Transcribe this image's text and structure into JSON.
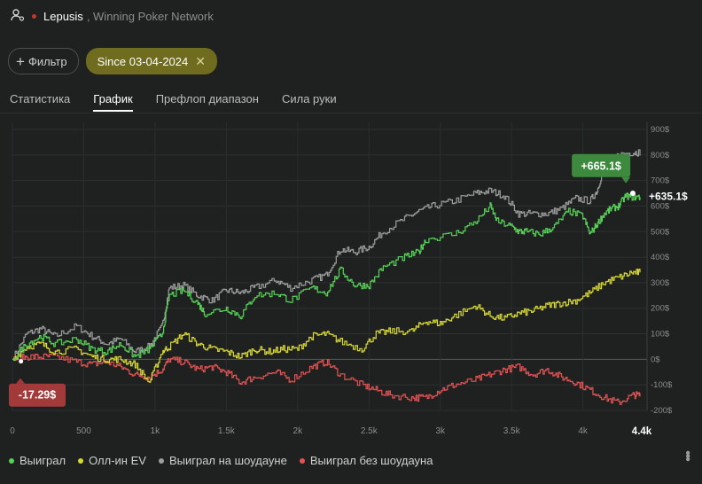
{
  "header": {
    "player": "Lepusis",
    "network": ", Winning Poker Network",
    "user_icon": "user-settings-icon"
  },
  "filters": {
    "add_label": "Фильтр",
    "date_label": "Since 03-04-2024"
  },
  "tabs": [
    {
      "label": "Статистика",
      "active": false
    },
    {
      "label": "График",
      "active": true
    },
    {
      "label": "Префлоп диапазон",
      "active": false
    },
    {
      "label": "Сила руки",
      "active": false
    }
  ],
  "chart_data": {
    "type": "line",
    "xlabel": "",
    "ylabel": "",
    "xlim": [
      0,
      4400
    ],
    "ylim": [
      -200,
      900
    ],
    "x_ticks": [
      "0",
      "500",
      "1k",
      "1.5k",
      "2k",
      "2.5k",
      "3k",
      "3.5k",
      "4k"
    ],
    "x_last_label": "4.4k",
    "y_ticks": [
      "900$",
      "800$",
      "700$",
      "600$",
      "500$",
      "400$",
      "300$",
      "200$",
      "100$",
      "0$",
      "-100$",
      "-200$"
    ],
    "y_tick_values": [
      900,
      800,
      700,
      600,
      500,
      400,
      300,
      200,
      100,
      0,
      -100,
      -200
    ],
    "grid": true,
    "legend_position": "bottom-left",
    "annotations": [
      {
        "text": "+665.1$",
        "x": 4320,
        "y": 665,
        "style": "green-box"
      },
      {
        "text": "+635.1$",
        "x": 4400,
        "y": 635,
        "style": "label"
      },
      {
        "text": "-17.29$",
        "x": 60,
        "y": -17,
        "style": "red-box"
      }
    ],
    "series": [
      {
        "name": "Выиграл",
        "color": "#58d158",
        "points": [
          [
            0,
            0
          ],
          [
            100,
            60
          ],
          [
            200,
            90
          ],
          [
            300,
            60
          ],
          [
            450,
            80
          ],
          [
            560,
            40
          ],
          [
            660,
            30
          ],
          [
            760,
            60
          ],
          [
            860,
            10
          ],
          [
            960,
            40
          ],
          [
            1050,
            100
          ],
          [
            1100,
            250
          ],
          [
            1200,
            270
          ],
          [
            1300,
            220
          ],
          [
            1350,
            180
          ],
          [
            1500,
            200
          ],
          [
            1600,
            170
          ],
          [
            1700,
            250
          ],
          [
            1850,
            260
          ],
          [
            1950,
            230
          ],
          [
            2100,
            280
          ],
          [
            2200,
            260
          ],
          [
            2300,
            350
          ],
          [
            2400,
            290
          ],
          [
            2500,
            290
          ],
          [
            2600,
            360
          ],
          [
            2750,
            400
          ],
          [
            2850,
            420
          ],
          [
            2900,
            470
          ],
          [
            3100,
            490
          ],
          [
            3250,
            540
          ],
          [
            3350,
            600
          ],
          [
            3400,
            540
          ],
          [
            3500,
            520
          ],
          [
            3550,
            500
          ],
          [
            3600,
            500
          ],
          [
            3700,
            490
          ],
          [
            3800,
            520
          ],
          [
            3900,
            580
          ],
          [
            4000,
            560
          ],
          [
            4050,
            490
          ],
          [
            4100,
            530
          ],
          [
            4150,
            570
          ],
          [
            4200,
            590
          ],
          [
            4250,
            600
          ],
          [
            4300,
            640
          ],
          [
            4350,
            635
          ],
          [
            4400,
            635
          ]
        ]
      },
      {
        "name": "Олл-ин EV",
        "color": "#d7d835",
        "points": [
          [
            0,
            0
          ],
          [
            100,
            50
          ],
          [
            200,
            60
          ],
          [
            300,
            30
          ],
          [
            450,
            40
          ],
          [
            560,
            10
          ],
          [
            660,
            0
          ],
          [
            760,
            0
          ],
          [
            860,
            -20
          ],
          [
            960,
            -90
          ],
          [
            1050,
            30
          ],
          [
            1100,
            50
          ],
          [
            1200,
            100
          ],
          [
            1300,
            60
          ],
          [
            1400,
            40
          ],
          [
            1500,
            30
          ],
          [
            1600,
            10
          ],
          [
            1700,
            40
          ],
          [
            1800,
            30
          ],
          [
            1900,
            40
          ],
          [
            2000,
            40
          ],
          [
            2100,
            90
          ],
          [
            2200,
            100
          ],
          [
            2300,
            70
          ],
          [
            2450,
            40
          ],
          [
            2550,
            100
          ],
          [
            2650,
            110
          ],
          [
            2800,
            110
          ],
          [
            2900,
            150
          ],
          [
            3000,
            140
          ],
          [
            3100,
            170
          ],
          [
            3250,
            210
          ],
          [
            3350,
            170
          ],
          [
            3450,
            160
          ],
          [
            3550,
            180
          ],
          [
            3650,
            190
          ],
          [
            3750,
            210
          ],
          [
            3850,
            220
          ],
          [
            3950,
            230
          ],
          [
            4050,
            260
          ],
          [
            4150,
            300
          ],
          [
            4250,
            320
          ],
          [
            4350,
            340
          ],
          [
            4400,
            340
          ]
        ]
      },
      {
        "name": "Выиграл на шоудауне",
        "color": "#9e9e9e",
        "points": [
          [
            0,
            0
          ],
          [
            100,
            100
          ],
          [
            200,
            120
          ],
          [
            300,
            90
          ],
          [
            450,
            130
          ],
          [
            560,
            90
          ],
          [
            660,
            60
          ],
          [
            760,
            80
          ],
          [
            860,
            30
          ],
          [
            960,
            50
          ],
          [
            1050,
            130
          ],
          [
            1100,
            280
          ],
          [
            1200,
            290
          ],
          [
            1300,
            250
          ],
          [
            1400,
            230
          ],
          [
            1500,
            270
          ],
          [
            1600,
            260
          ],
          [
            1700,
            280
          ],
          [
            1850,
            310
          ],
          [
            1950,
            280
          ],
          [
            2100,
            310
          ],
          [
            2200,
            330
          ],
          [
            2300,
            430
          ],
          [
            2400,
            420
          ],
          [
            2500,
            440
          ],
          [
            2600,
            500
          ],
          [
            2750,
            550
          ],
          [
            2850,
            580
          ],
          [
            2950,
            600
          ],
          [
            3100,
            620
          ],
          [
            3250,
            650
          ],
          [
            3350,
            660
          ],
          [
            3450,
            640
          ],
          [
            3550,
            570
          ],
          [
            3650,
            570
          ],
          [
            3750,
            570
          ],
          [
            3850,
            590
          ],
          [
            3950,
            630
          ],
          [
            4050,
            620
          ],
          [
            4100,
            660
          ],
          [
            4150,
            760
          ],
          [
            4250,
            800
          ],
          [
            4350,
            810
          ],
          [
            4400,
            810
          ]
        ]
      },
      {
        "name": "Выиграл без шоудауна",
        "color": "#e35353",
        "points": [
          [
            0,
            0
          ],
          [
            100,
            10
          ],
          [
            200,
            10
          ],
          [
            300,
            10
          ],
          [
            450,
            -10
          ],
          [
            560,
            -20
          ],
          [
            660,
            -10
          ],
          [
            760,
            -30
          ],
          [
            860,
            -60
          ],
          [
            960,
            -70
          ],
          [
            1050,
            -40
          ],
          [
            1100,
            0
          ],
          [
            1200,
            -10
          ],
          [
            1300,
            -40
          ],
          [
            1400,
            -30
          ],
          [
            1500,
            -50
          ],
          [
            1600,
            -90
          ],
          [
            1700,
            -70
          ],
          [
            1850,
            -50
          ],
          [
            1950,
            -80
          ],
          [
            2100,
            -30
          ],
          [
            2200,
            -10
          ],
          [
            2300,
            -60
          ],
          [
            2450,
            -100
          ],
          [
            2550,
            -120
          ],
          [
            2650,
            -140
          ],
          [
            2800,
            -150
          ],
          [
            2900,
            -150
          ],
          [
            3000,
            -120
          ],
          [
            3100,
            -100
          ],
          [
            3250,
            -80
          ],
          [
            3350,
            -60
          ],
          [
            3450,
            -40
          ],
          [
            3550,
            -30
          ],
          [
            3650,
            -60
          ],
          [
            3750,
            -40
          ],
          [
            3850,
            -70
          ],
          [
            3950,
            -90
          ],
          [
            4050,
            -120
          ],
          [
            4150,
            -150
          ],
          [
            4250,
            -170
          ],
          [
            4350,
            -140
          ],
          [
            4400,
            -140
          ]
        ]
      }
    ]
  },
  "legend": {
    "items": [
      {
        "label": "Выиграл",
        "color": "#58d158"
      },
      {
        "label": "Олл-ин EV",
        "color": "#d7d835"
      },
      {
        "label": "Выиграл на шоудауне",
        "color": "#9e9e9e"
      },
      {
        "label": "Выиграл без шоудауна",
        "color": "#e35353"
      }
    ]
  },
  "menu_icon": "more-vertical-icon"
}
